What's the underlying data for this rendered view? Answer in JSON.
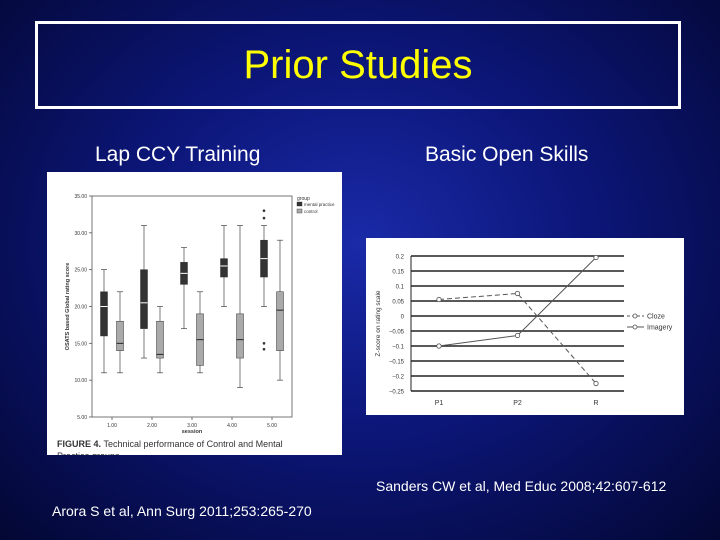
{
  "slide": {
    "title": "Prior Studies",
    "left_heading": "Lap CCY Training",
    "right_heading": "Basic Open Skills",
    "left_citation": "Arora S et al, Ann Surg 2011;253:265-270",
    "right_citation": "Sanders CW et al, Med Educ 2008;42:607-612",
    "colors": {
      "title": "#ffff00",
      "background": "#0c1678",
      "text": "#ffffff"
    }
  },
  "chart_data": [
    {
      "type": "boxplot",
      "ylabel": "OSATS based Global rating score",
      "xlabel": "session",
      "ylim": [
        5,
        35
      ],
      "yticks": [
        "5.00",
        "10.00",
        "15.00",
        "20.00",
        "25.00",
        "30.00",
        "35.00"
      ],
      "categories": [
        "1.00",
        "2.00",
        "3.00",
        "4.00",
        "5.00"
      ],
      "legend_title": "group",
      "caption_label": "FIGURE 4.",
      "caption_text": "Technical performance of Control and Mental Practice groups.",
      "series": [
        {
          "name": "mental practice",
          "color": "#333333",
          "boxes": [
            {
              "min": 11,
              "q1": 16,
              "median": 20,
              "q3": 22,
              "max": 25
            },
            {
              "min": 13,
              "q1": 17,
              "median": 20.5,
              "q3": 25,
              "max": 31
            },
            {
              "min": 17,
              "q1": 23,
              "median": 24.5,
              "q3": 26,
              "max": 28
            },
            {
              "min": 20,
              "q1": 24,
              "median": 25.5,
              "q3": 26.5,
              "max": 31
            },
            {
              "min": 20,
              "q1": 24,
              "median": 26.5,
              "q3": 29,
              "max": 31
            }
          ],
          "outliers": [
            [
              4,
              33
            ],
            [
              4,
              32
            ],
            [
              4,
              15
            ],
            [
              4,
              14.2
            ]
          ]
        },
        {
          "name": "control",
          "color": "#aaaaaa",
          "boxes": [
            {
              "min": 11,
              "q1": 14,
              "median": 15,
              "q3": 18,
              "max": 22
            },
            {
              "min": 11,
              "q1": 13,
              "median": 13.5,
              "q3": 18,
              "max": 20
            },
            {
              "min": 11,
              "q1": 12,
              "median": 15.5,
              "q3": 19,
              "max": 22
            },
            {
              "min": 9,
              "q1": 13,
              "median": 15.5,
              "q3": 19,
              "max": 31
            },
            {
              "min": 10,
              "q1": 14,
              "median": 19.5,
              "q3": 22,
              "max": 29
            }
          ]
        }
      ]
    },
    {
      "type": "line",
      "ylabel": "Z-score on rating scale",
      "ylim": [
        -0.25,
        0.2
      ],
      "yticks": [
        "0.2",
        "0.15",
        "0.1",
        "0.05",
        "0",
        "−0.05",
        "−0.1",
        "−0.15",
        "−0.2",
        "−0.25"
      ],
      "categories": [
        "P1",
        "P2",
        "R"
      ],
      "series": [
        {
          "name": "Cloze",
          "dashed": true,
          "values": [
            0.055,
            0.075,
            -0.225
          ]
        },
        {
          "name": "Imagery",
          "dashed": false,
          "values": [
            -0.1,
            -0.065,
            0.195
          ]
        }
      ]
    }
  ]
}
